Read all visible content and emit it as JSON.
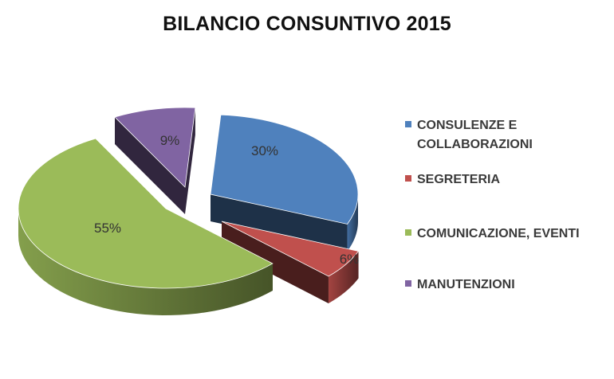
{
  "chart_data": {
    "type": "pie",
    "title": "BILANCIO CONSUNTIVO 2015",
    "legend_position": "right",
    "slices": [
      {
        "label": "CONSULENZE E COLLABORAZIONI",
        "value": 30,
        "value_label": "30%",
        "color": "#4f81bd"
      },
      {
        "label": "SEGRETERIA",
        "value": 6,
        "value_label": "6%",
        "color": "#c0504d"
      },
      {
        "label": "COMUNICAZIONE, EVENTI",
        "value": 55,
        "value_label": "55%",
        "color": "#9bbb59"
      },
      {
        "label": "MANUTENZIONI",
        "value": 9,
        "value_label": "9%",
        "color": "#8064a2"
      }
    ]
  }
}
